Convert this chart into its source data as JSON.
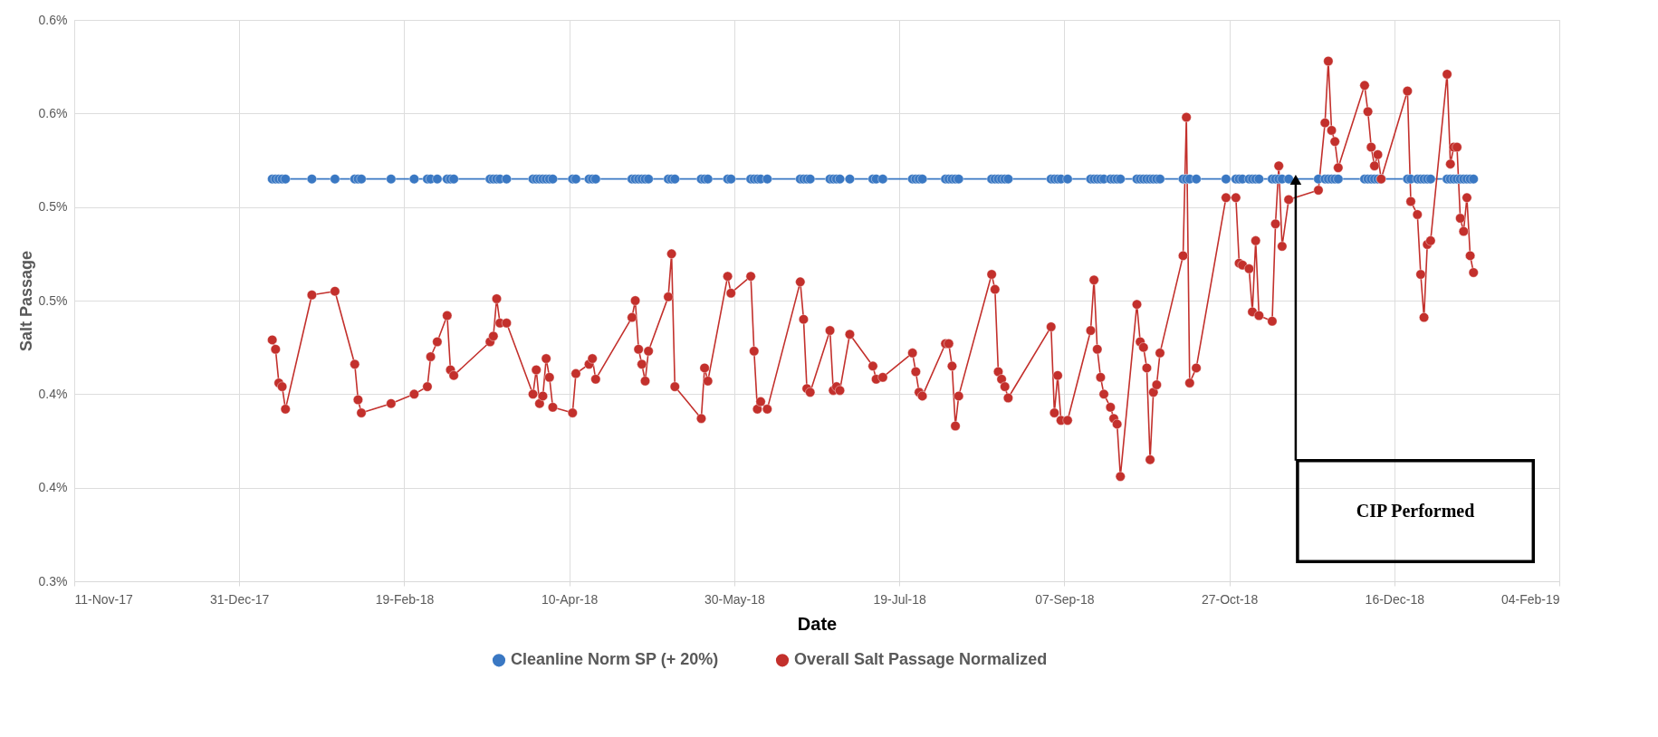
{
  "chart_data": {
    "type": "line",
    "xlabel": "Date",
    "ylabel": "Salt Passage",
    "x": [
      "2018-01-10",
      "2018-01-11",
      "2018-01-12",
      "2018-01-13",
      "2018-01-14",
      "2018-01-22",
      "2018-01-29",
      "2018-02-04",
      "2018-02-05",
      "2018-02-06",
      "2018-02-15",
      "2018-02-22",
      "2018-02-26",
      "2018-02-27",
      "2018-03-01",
      "2018-03-04",
      "2018-03-05",
      "2018-03-06",
      "2018-03-17",
      "2018-03-18",
      "2018-03-19",
      "2018-03-20",
      "2018-03-22",
      "2018-03-30",
      "2018-03-31",
      "2018-04-01",
      "2018-04-02",
      "2018-04-03",
      "2018-04-04",
      "2018-04-05",
      "2018-04-11",
      "2018-04-12",
      "2018-04-16",
      "2018-04-17",
      "2018-04-18",
      "2018-04-29",
      "2018-04-30",
      "2018-05-01",
      "2018-05-02",
      "2018-05-03",
      "2018-05-04",
      "2018-05-10",
      "2018-05-11",
      "2018-05-12",
      "2018-05-20",
      "2018-05-21",
      "2018-05-22",
      "2018-05-28",
      "2018-05-29",
      "2018-06-04",
      "2018-06-05",
      "2018-06-06",
      "2018-06-07",
      "2018-06-09",
      "2018-06-19",
      "2018-06-20",
      "2018-06-21",
      "2018-06-22",
      "2018-06-28",
      "2018-06-29",
      "2018-06-30",
      "2018-07-01",
      "2018-07-04",
      "2018-07-11",
      "2018-07-12",
      "2018-07-14",
      "2018-07-23",
      "2018-07-24",
      "2018-07-25",
      "2018-07-26",
      "2018-08-02",
      "2018-08-03",
      "2018-08-04",
      "2018-08-05",
      "2018-08-06",
      "2018-08-16",
      "2018-08-17",
      "2018-08-18",
      "2018-08-19",
      "2018-08-20",
      "2018-08-21",
      "2018-09-03",
      "2018-09-04",
      "2018-09-05",
      "2018-09-06",
      "2018-09-08",
      "2018-09-15",
      "2018-09-16",
      "2018-09-17",
      "2018-09-18",
      "2018-09-19",
      "2018-09-21",
      "2018-09-22",
      "2018-09-23",
      "2018-09-24",
      "2018-09-29",
      "2018-09-30",
      "2018-10-01",
      "2018-10-02",
      "2018-10-03",
      "2018-10-04",
      "2018-10-05",
      "2018-10-06",
      "2018-10-13",
      "2018-10-14",
      "2018-10-15",
      "2018-10-17",
      "2018-10-26",
      "2018-10-29",
      "2018-10-30",
      "2018-10-31",
      "2018-11-02",
      "2018-11-03",
      "2018-11-04",
      "2018-11-05",
      "2018-11-09",
      "2018-11-10",
      "2018-11-11",
      "2018-11-12",
      "2018-11-14",
      "2018-11-23",
      "2018-11-25",
      "2018-11-26",
      "2018-11-27",
      "2018-11-28",
      "2018-11-29",
      "2018-12-07",
      "2018-12-08",
      "2018-12-09",
      "2018-12-10",
      "2018-12-11",
      "2018-12-12",
      "2018-12-20",
      "2018-12-21",
      "2018-12-23",
      "2018-12-24",
      "2018-12-25",
      "2018-12-26",
      "2018-12-27",
      "2019-01-01",
      "2019-01-02",
      "2019-01-03",
      "2019-01-04",
      "2019-01-05",
      "2019-01-06",
      "2019-01-07",
      "2019-01-08",
      "2019-01-09"
    ],
    "series": [
      {
        "name": "Cleanline Norm SP (+ 20%)",
        "color": "#3a78c3",
        "values": [
          0.515,
          0.515,
          0.515,
          0.515,
          0.515,
          0.515,
          0.515,
          0.515,
          0.515,
          0.515,
          0.515,
          0.515,
          0.515,
          0.515,
          0.515,
          0.515,
          0.515,
          0.515,
          0.515,
          0.515,
          0.515,
          0.515,
          0.515,
          0.515,
          0.515,
          0.515,
          0.515,
          0.515,
          0.515,
          0.515,
          0.515,
          0.515,
          0.515,
          0.515,
          0.515,
          0.515,
          0.515,
          0.515,
          0.515,
          0.515,
          0.515,
          0.515,
          0.515,
          0.515,
          0.515,
          0.515,
          0.515,
          0.515,
          0.515,
          0.515,
          0.515,
          0.515,
          0.515,
          0.515,
          0.515,
          0.515,
          0.515,
          0.515,
          0.515,
          0.515,
          0.515,
          0.515,
          0.515,
          0.515,
          0.515,
          0.515,
          0.515,
          0.515,
          0.515,
          0.515,
          0.515,
          0.515,
          0.515,
          0.515,
          0.515,
          0.515,
          0.515,
          0.515,
          0.515,
          0.515,
          0.515,
          0.515,
          0.515,
          0.515,
          0.515,
          0.515,
          0.515,
          0.515,
          0.515,
          0.515,
          0.515,
          0.515,
          0.515,
          0.515,
          0.515,
          0.515,
          0.515,
          0.515,
          0.515,
          0.515,
          0.515,
          0.515,
          0.515,
          0.515,
          0.515,
          0.515,
          0.515,
          0.515,
          0.515,
          0.515,
          0.515,
          0.515,
          0.515,
          0.515,
          0.515,
          0.515,
          0.515,
          0.515,
          0.515,
          0.515,
          0.515,
          0.515,
          0.515,
          0.515,
          0.515,
          0.515,
          0.515,
          0.515,
          0.515,
          0.515,
          0.515,
          0.515,
          0.515,
          0.515,
          0.515,
          0.515,
          0.515,
          0.515,
          0.515,
          0.515,
          0.515,
          0.515,
          0.515,
          0.515,
          0.515,
          0.515,
          0.515,
          0.515
        ]
      },
      {
        "name": "Overall Salt Passage Normalized",
        "color": "#c3302c",
        "values": [
          0.429,
          0.424,
          0.406,
          0.404,
          0.392,
          0.453,
          0.455,
          0.416,
          0.397,
          0.39,
          0.395,
          0.4,
          0.404,
          0.42,
          0.428,
          0.442,
          0.413,
          0.41,
          0.428,
          0.431,
          0.451,
          0.438,
          0.438,
          0.4,
          0.413,
          0.395,
          0.399,
          0.419,
          0.409,
          0.393,
          0.39,
          0.411,
          0.416,
          0.419,
          0.408,
          0.441,
          0.45,
          0.424,
          0.416,
          0.407,
          0.423,
          0.452,
          0.475,
          0.404,
          0.387,
          0.414,
          0.407,
          0.463,
          0.454,
          0.463,
          0.423,
          0.392,
          0.396,
          0.392,
          0.46,
          0.44,
          0.403,
          0.401,
          0.434,
          0.402,
          0.404,
          0.402,
          0.432,
          0.415,
          0.408,
          0.409,
          0.422,
          0.412,
          0.401,
          0.399,
          0.427,
          0.427,
          0.415,
          0.383,
          0.399,
          0.464,
          0.456,
          0.412,
          0.408,
          0.404,
          0.398,
          0.436,
          0.39,
          0.41,
          0.386,
          0.386,
          0.434,
          0.461,
          0.424,
          0.409,
          0.4,
          0.393,
          0.387,
          0.384,
          0.356,
          0.448,
          0.428,
          0.425,
          0.414,
          0.365,
          0.401,
          0.405,
          0.422,
          0.474,
          0.548,
          0.406,
          0.414,
          0.505,
          0.505,
          0.47,
          0.469,
          0.467,
          0.444,
          0.482,
          0.442,
          0.439,
          0.491,
          0.522,
          0.479,
          0.504,
          0.509,
          0.545,
          0.578,
          0.541,
          0.535,
          0.521,
          0.565,
          0.551,
          0.532,
          0.522,
          0.528,
          0.515,
          0.562,
          0.503,
          0.496,
          0.464,
          0.441,
          0.48,
          0.482,
          0.571,
          0.523,
          0.532,
          0.532,
          0.494,
          0.487,
          0.505,
          0.474,
          0.465
        ]
      }
    ],
    "xlim": [
      "2017-11-11",
      "2019-02-04"
    ],
    "xticks": [
      {
        "value": "2017-11-11",
        "label": "11-Nov-17"
      },
      {
        "value": "2017-12-31",
        "label": "31-Dec-17"
      },
      {
        "value": "2018-02-19",
        "label": "19-Feb-18"
      },
      {
        "value": "2018-04-10",
        "label": "10-Apr-18"
      },
      {
        "value": "2018-05-30",
        "label": "30-May-18"
      },
      {
        "value": "2018-07-19",
        "label": "19-Jul-18"
      },
      {
        "value": "2018-09-07",
        "label": "07-Sep-18"
      },
      {
        "value": "2018-10-27",
        "label": "27-Oct-18"
      },
      {
        "value": "2018-12-16",
        "label": "16-Dec-18"
      },
      {
        "value": "2019-02-04",
        "label": "04-Feb-19"
      }
    ],
    "ylim": [
      0.3,
      0.6
    ],
    "yticks": [
      {
        "value": 0.3,
        "label": "0.3%"
      },
      {
        "value": 0.35,
        "label": "0.4%"
      },
      {
        "value": 0.4,
        "label": "0.4%"
      },
      {
        "value": 0.45,
        "label": "0.5%"
      },
      {
        "value": 0.5,
        "label": "0.5%"
      },
      {
        "value": 0.55,
        "label": "0.6%"
      },
      {
        "value": 0.6,
        "label": "0.6%"
      }
    ],
    "annotations": [
      "CIP Performed"
    ],
    "grid": true,
    "legend": "bottom",
    "marker": "circle",
    "line_style": "solid"
  }
}
